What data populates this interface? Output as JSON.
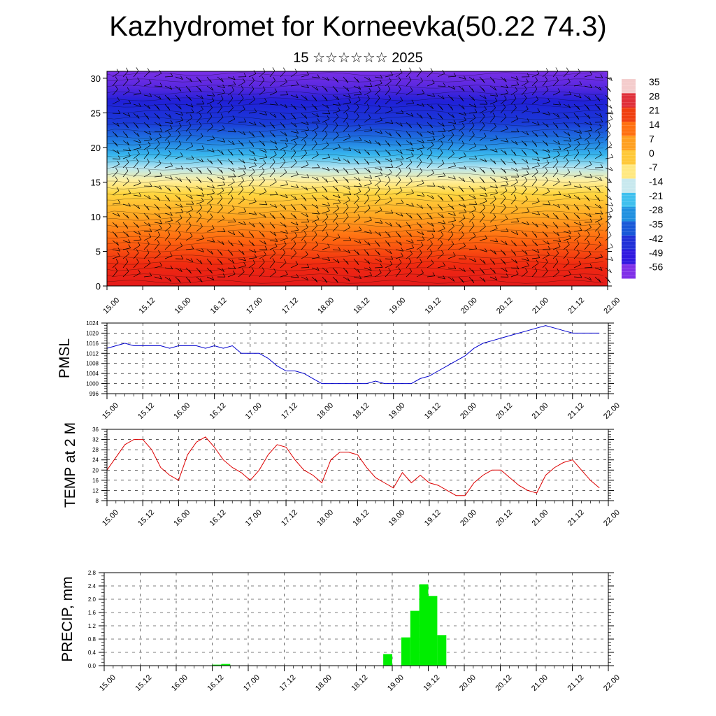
{
  "title": "Kazhydromet for Korneevka(50.22 74.3)",
  "subtitle": "15 ☆☆☆☆☆☆ 2025",
  "time_ticks": [
    "15.00",
    "15.12",
    "16.00",
    "16.12",
    "17.00",
    "17.12",
    "18.00",
    "18.12",
    "19.00",
    "19.12",
    "20.00",
    "20.12",
    "21.00",
    "21.12",
    "22.00"
  ],
  "chart_data": [
    {
      "type": "heatmap",
      "title": "",
      "xlabel": "",
      "ylabel": "",
      "ylim": [
        0,
        31
      ],
      "y_ticks": [
        0,
        5,
        10,
        15,
        20,
        25,
        30
      ],
      "colorbar_labels": [
        35,
        28,
        21,
        14,
        7,
        0,
        -7,
        -14,
        -21,
        -28,
        -35,
        -42,
        -49,
        -56
      ],
      "colorbar_colors": [
        "#f4cccc",
        "#e0303a",
        "#f04010",
        "#ff7010",
        "#ffa020",
        "#ffc838",
        "#ffe880",
        "#c8e8ee",
        "#40c0ee",
        "#2090e0",
        "#1858d8",
        "#2030d8",
        "#3018e0",
        "#8030e8"
      ],
      "overlay": "wind barbs",
      "x": [
        0,
        12,
        24,
        36,
        48,
        60,
        72,
        84,
        96,
        108,
        120,
        132,
        144,
        156,
        168
      ],
      "temperature_at_heights": [
        {
          "height": 0,
          "values": [
            20,
            22,
            18,
            22,
            20,
            23,
            18,
            14,
            12,
            9,
            12,
            11,
            14,
            10,
            10
          ]
        },
        {
          "height": 10,
          "values": [
            14,
            15,
            14,
            15,
            14,
            15,
            12,
            8,
            5,
            4,
            5,
            5,
            6,
            5,
            5
          ]
        },
        {
          "height": 15,
          "values": [
            -8,
            -7,
            -8,
            -6,
            -7,
            -6,
            -5,
            -5,
            -8,
            -6,
            -6,
            -6,
            -8,
            -8,
            -8
          ]
        },
        {
          "height": 20,
          "values": [
            -32,
            -32,
            -32,
            -33,
            -32,
            -34,
            -32,
            -31,
            -33,
            -34,
            -32,
            -32,
            -32,
            -33,
            -32
          ]
        },
        {
          "height": 25,
          "values": [
            -55,
            -55,
            -54,
            -56,
            -54,
            -56,
            -56,
            -57,
            -55,
            -56,
            -56,
            -55,
            -57,
            -56,
            -56
          ]
        },
        {
          "height": 30,
          "values": [
            -48,
            -48,
            -47,
            -48,
            -48,
            -47,
            -48,
            -50,
            -48,
            -48,
            -48,
            -48,
            -48,
            -48,
            -48
          ]
        }
      ]
    },
    {
      "type": "line",
      "ylabel": "PMSL",
      "ylim": [
        996,
        1024
      ],
      "y_ticks": [
        996,
        1000,
        1004,
        1008,
        1012,
        1016,
        1020,
        1024
      ],
      "series": [
        {
          "color": "#0000cc",
          "x": [
            0,
            3,
            6,
            9,
            12,
            15,
            18,
            21,
            24,
            27,
            30,
            33,
            36,
            39,
            42,
            45,
            48,
            51,
            54,
            57,
            60,
            63,
            66,
            69,
            72,
            75,
            78,
            81,
            84,
            87,
            90,
            93,
            96,
            99,
            102,
            105,
            108,
            111,
            114,
            117,
            120,
            123,
            126,
            129,
            132,
            135,
            138,
            141,
            144,
            147,
            150,
            153,
            156,
            159,
            162,
            165
          ],
          "values": [
            1014,
            1015,
            1016,
            1015,
            1015,
            1015,
            1015,
            1014,
            1015,
            1015,
            1015,
            1014,
            1015,
            1014,
            1015,
            1012,
            1012,
            1012,
            1010,
            1007,
            1005,
            1005,
            1004,
            1002,
            1000,
            1000,
            1000,
            1000,
            1000,
            1000,
            1001,
            1000,
            1000,
            1000,
            1000,
            1002,
            1003,
            1005,
            1007,
            1009,
            1011,
            1014,
            1016,
            1017,
            1018,
            1019,
            1020,
            1021,
            1022,
            1023,
            1022,
            1021,
            1020,
            1020,
            1020,
            1020
          ]
        }
      ]
    },
    {
      "type": "line",
      "ylabel": "TEMP at 2 M",
      "ylim": [
        8,
        36
      ],
      "y_ticks": [
        8,
        12,
        16,
        20,
        24,
        28,
        32,
        36
      ],
      "series": [
        {
          "color": "#dd0000",
          "x": [
            0,
            3,
            6,
            9,
            12,
            15,
            18,
            21,
            24,
            27,
            30,
            33,
            36,
            39,
            42,
            45,
            48,
            51,
            54,
            57,
            60,
            63,
            66,
            69,
            72,
            75,
            78,
            81,
            84,
            87,
            90,
            93,
            96,
            99,
            102,
            105,
            108,
            111,
            114,
            117,
            120,
            123,
            126,
            129,
            132,
            135,
            138,
            141,
            144,
            147,
            150,
            153,
            156,
            159,
            162,
            165
          ],
          "values": [
            20,
            25,
            30,
            32,
            32,
            28,
            21,
            18,
            16,
            26,
            31,
            33,
            29,
            24,
            21,
            19,
            16,
            20,
            26,
            30,
            29,
            24,
            20,
            18,
            15,
            24,
            27,
            27,
            26,
            21,
            17,
            15,
            13,
            19,
            15,
            18,
            15,
            14,
            12,
            10,
            10,
            15,
            18,
            20,
            20,
            17,
            14,
            12,
            11,
            18,
            21,
            23,
            24,
            20,
            16,
            13
          ]
        }
      ]
    },
    {
      "type": "bar",
      "ylabel": "PRECIP, mm",
      "ylim": [
        0,
        2.8
      ],
      "y_ticks": [
        0.0,
        0.4,
        0.8,
        1.2,
        1.6,
        2.0,
        2.4,
        2.8
      ],
      "bar_color": "#00ee00",
      "bar_width_hours": 3,
      "x": [
        36,
        39,
        93,
        99,
        102,
        105,
        108,
        111
      ],
      "values": [
        0.03,
        0.05,
        0.35,
        0.85,
        1.65,
        2.45,
        2.1,
        0.92
      ]
    }
  ]
}
